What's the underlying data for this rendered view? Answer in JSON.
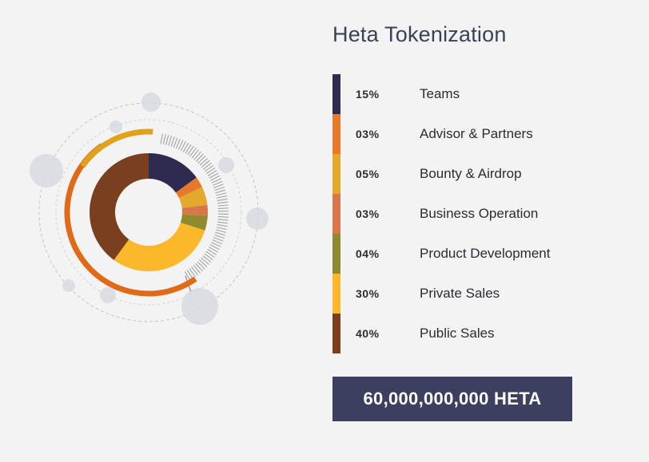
{
  "title": "Heta Tokenization",
  "total": "60,000,000,000 HETA",
  "chart_data": {
    "type": "pie",
    "title": "Heta Tokenization",
    "categories": [
      "Teams",
      "Advisor & Partners",
      "Bounty & Airdrop",
      "Business Operation",
      "Product Development",
      "Private Sales",
      "Public Sales"
    ],
    "values": [
      15,
      3,
      5,
      3,
      4,
      30,
      40
    ],
    "labels": [
      "15%",
      "03%",
      "05%",
      "03%",
      "04%",
      "30%",
      "40%"
    ],
    "colors": [
      "#2f2a4f",
      "#e8792a",
      "#e3a82c",
      "#d8784a",
      "#8e8a2e",
      "#fcb72b",
      "#7a3f1f"
    ],
    "donut": true
  },
  "colors": {
    "accent_orange": "#e06a17",
    "accent_gold": "#e0a21b",
    "total_bg": "#3d3f5e"
  }
}
